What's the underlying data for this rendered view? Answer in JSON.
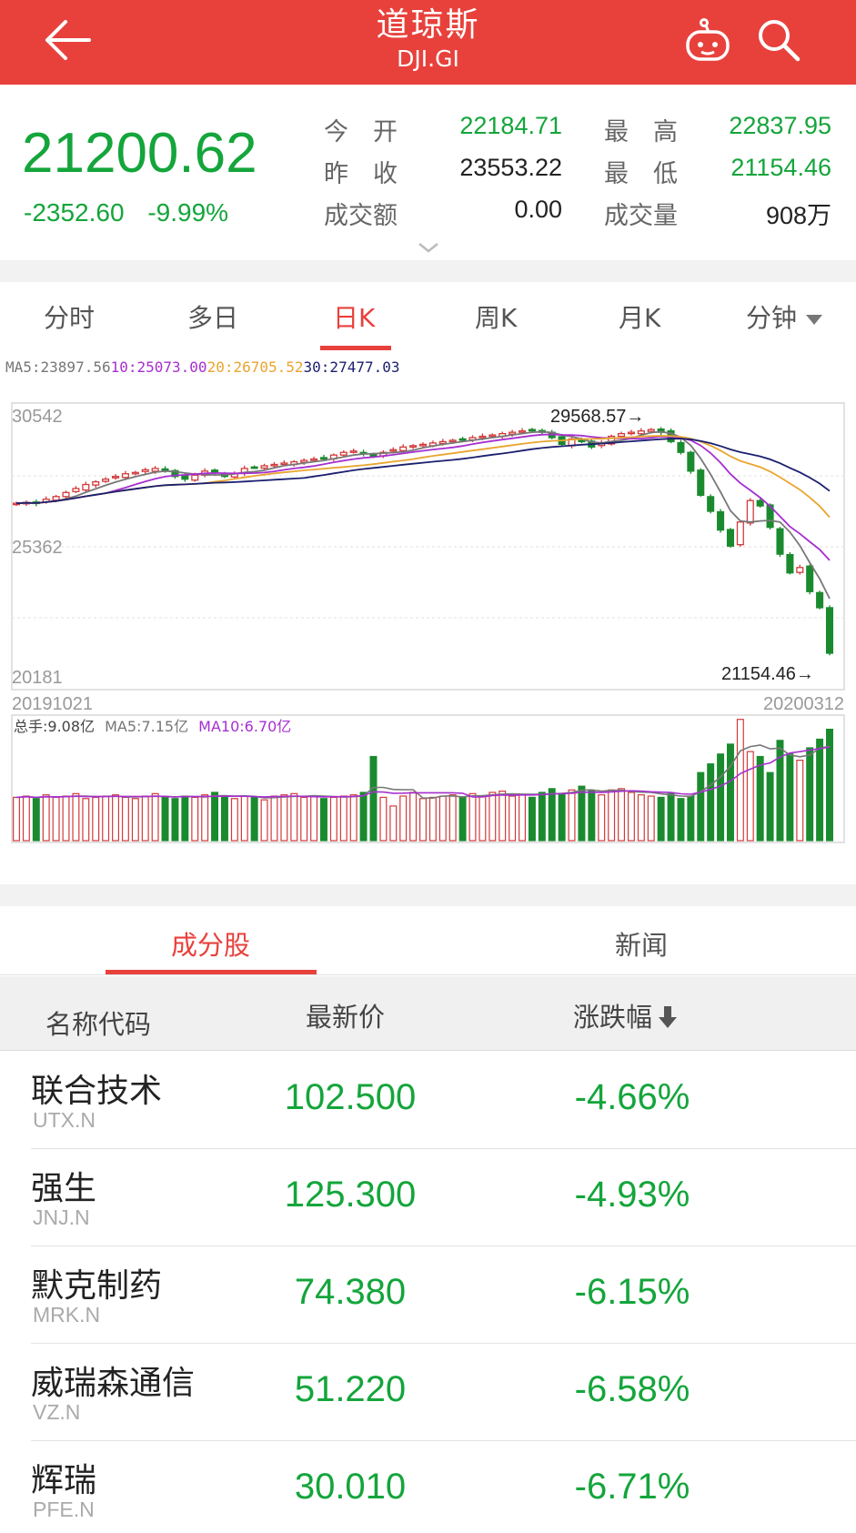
{
  "header": {
    "title": "道琼斯",
    "subtitle": "DJI.GI"
  },
  "quote": {
    "price": "21200.62",
    "change": "-2352.60",
    "change_pct": "-9.99%",
    "open_label": "今　开",
    "open_value": "22184.71",
    "high_label": "最　高",
    "high_value": "22837.95",
    "prev_close_label": "昨　收",
    "prev_close_value": "23553.22",
    "low_label": "最　低",
    "low_value": "21154.46",
    "turnover_label": "成交额",
    "turnover_value": "0.00",
    "volume_label": "成交量",
    "volume_value": "908万"
  },
  "tabs": [
    {
      "label": "分时"
    },
    {
      "label": "多日"
    },
    {
      "label": "日K"
    },
    {
      "label": "周K"
    },
    {
      "label": "月K"
    },
    {
      "label": "分钟"
    }
  ],
  "ma": {
    "ma5": "MA5:23897.56",
    "ma10": "10:25073.00",
    "ma20": "20:26705.52",
    "ma30": "30:27477.03"
  },
  "colors": {
    "red": "#e8413c",
    "up": "#d23a3a",
    "down": "#1a8a2e",
    "ma5": "#777777",
    "ma10": "#a62fd0",
    "ma20": "#e9a52f",
    "ma30": "#1b1f6e"
  },
  "chart_data": {
    "type": "candlestick",
    "y_ticks": [
      "30542",
      "25362",
      "20181"
    ],
    "ylim": [
      20181,
      30542
    ],
    "x_start_label": "20191021",
    "x_end_label": "20200312",
    "annotation_high": "29568.57→",
    "annotation_low": "21154.46→",
    "high_value": 29568.57,
    "low_value": 21154.46,
    "close_path": [
      26800,
      26830,
      26790,
      26950,
      27050,
      27200,
      27350,
      27500,
      27600,
      27700,
      27800,
      27900,
      27950,
      28050,
      28100,
      28000,
      27800,
      27700,
      27850,
      28000,
      27950,
      27800,
      27900,
      28100,
      28150,
      28200,
      28250,
      28300,
      28350,
      28400,
      28450,
      28500,
      28600,
      28700,
      28750,
      28650,
      28550,
      28700,
      28800,
      28900,
      28950,
      29000,
      29050,
      29100,
      29150,
      29200,
      29250,
      29300,
      29350,
      29400,
      29450,
      29500,
      29550,
      29450,
      29250,
      29000,
      29200,
      29100,
      28900,
      29050,
      29300,
      29400,
      29450,
      29500,
      29550,
      29450,
      29100,
      28700,
      28000,
      27100,
      26500,
      25800,
      25200,
      26100,
      26900,
      26700,
      25900,
      24900,
      24200,
      24400,
      23500,
      22900,
      21200
    ],
    "volume_label": "总手:9.08亿",
    "volume_ma5": "MA5:7.15亿",
    "volume_ma10": "MA10:6.70亿",
    "volume_path": [
      3.5,
      3.6,
      3.4,
      3.7,
      3.5,
      3.6,
      3.8,
      3.4,
      3.5,
      3.6,
      3.7,
      3.5,
      3.4,
      3.6,
      3.8,
      3.5,
      3.4,
      3.6,
      3.5,
      3.7,
      3.9,
      3.5,
      3.4,
      3.6,
      3.5,
      3.3,
      3.6,
      3.7,
      3.8,
      3.5,
      3.6,
      3.4,
      3.5,
      3.6,
      3.7,
      3.9,
      6.8,
      3.5,
      2.8,
      3.6,
      3.9,
      3.4,
      3.5,
      3.6,
      3.7,
      3.5,
      3.8,
      3.6,
      3.9,
      4.0,
      3.6,
      3.7,
      3.5,
      3.9,
      4.2,
      3.8,
      4.1,
      4.4,
      4.0,
      3.7,
      4.1,
      4.2,
      3.9,
      3.7,
      3.6,
      3.5,
      3.8,
      3.4,
      3.6,
      5.5,
      6.2,
      7.0,
      7.8,
      9.8,
      7.2,
      6.8,
      5.5,
      8.1,
      7.0,
      6.5,
      7.5,
      8.2,
      9.0
    ]
  },
  "subtabs": {
    "components": "成分股",
    "news": "新闻"
  },
  "table": {
    "col_name": "名称代码",
    "col_price": "最新价",
    "col_change": "涨跌幅",
    "rows": [
      {
        "name": "联合技术",
        "code": "UTX.N",
        "price": "102.500",
        "pct": "-4.66%"
      },
      {
        "name": "强生",
        "code": "JNJ.N",
        "price": "125.300",
        "pct": "-4.93%"
      },
      {
        "name": "默克制药",
        "code": "MRK.N",
        "price": "74.380",
        "pct": "-6.15%"
      },
      {
        "name": "威瑞森通信",
        "code": "VZ.N",
        "price": "51.220",
        "pct": "-6.58%"
      },
      {
        "name": "辉瑞",
        "code": "PFE.N",
        "price": "30.010",
        "pct": "-6.71%"
      }
    ]
  }
}
